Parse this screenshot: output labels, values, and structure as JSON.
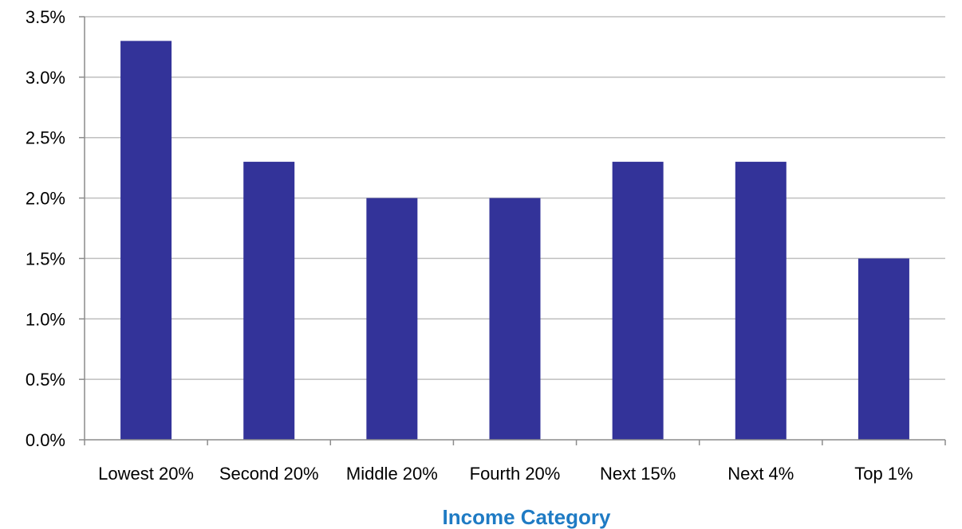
{
  "chart_data": {
    "type": "bar",
    "categories": [
      "Lowest 20%",
      "Second 20%",
      "Middle 20%",
      "Fourth 20%",
      "Next 15%",
      "Next 4%",
      "Top 1%"
    ],
    "values": [
      3.3,
      2.3,
      2.0,
      2.0,
      2.3,
      2.3,
      1.5
    ],
    "xlabel": "Income Category",
    "ylabel": "",
    "ylim": [
      0,
      3.5
    ],
    "yticks": [
      "0.0%",
      "0.5%",
      "1.0%",
      "1.5%",
      "2.0%",
      "2.5%",
      "3.0%",
      "3.5%"
    ],
    "grid": true,
    "legend": "none",
    "colors": {
      "bar": "#333399",
      "xlabel": "#1f7bc4"
    }
  }
}
